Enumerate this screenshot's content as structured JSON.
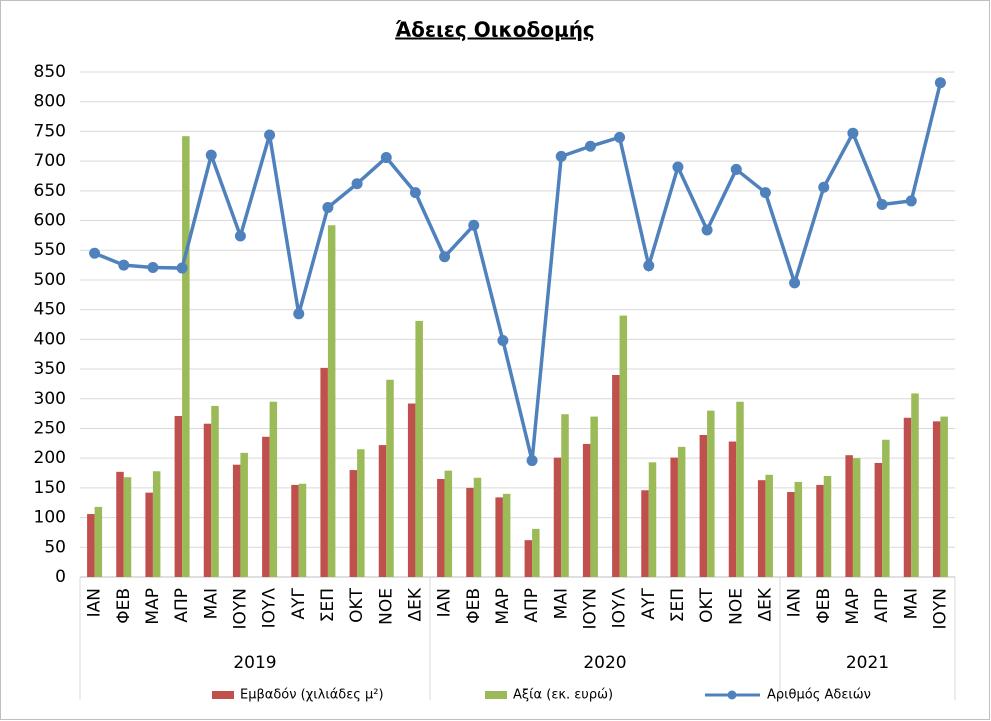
{
  "chart_data": {
    "type": "bar-line",
    "title": "Άδειες Οικοδομής",
    "category_groups": [
      {
        "label": "2019",
        "categories": [
          "ΙΑΝ",
          "ΦΕΒ",
          "ΜΑΡ",
          "ΑΠΡ",
          "ΜΑΙ",
          "ΙΟΥΝ",
          "ΙΟΥΛ",
          "ΑΥΓ",
          "ΣΕΠ",
          "ΟΚΤ",
          "ΝΟΕ",
          "ΔΕΚ"
        ]
      },
      {
        "label": "2020",
        "categories": [
          "ΙΑΝ",
          "ΦΕΒ",
          "ΜΑΡ",
          "ΑΠΡ",
          "ΜΑΙ",
          "ΙΟΥΝ",
          "ΙΟΥΛ",
          "ΑΥΓ",
          "ΣΕΠ",
          "ΟΚΤ",
          "ΝΟΕ",
          "ΔΕΚ"
        ]
      },
      {
        "label": "2021",
        "categories": [
          "ΙΑΝ",
          "ΦΕΒ",
          "ΜΑΡ",
          "ΑΠΡ",
          "ΜΑΙ",
          "ΙΟΥΝ"
        ]
      }
    ],
    "series": [
      {
        "name": "Εμβαδόν (χιλιάδες  μ²)",
        "type": "bar",
        "color": "#c0504d",
        "values": [
          106,
          177,
          142,
          271,
          258,
          189,
          236,
          155,
          352,
          180,
          222,
          292,
          165,
          150,
          134,
          62,
          201,
          224,
          340,
          146,
          201,
          239,
          228,
          163,
          143,
          155,
          205,
          192,
          268,
          262
        ]
      },
      {
        "name": "Αξία (εκ. ευρώ)",
        "type": "bar",
        "color": "#9bbb59",
        "values": [
          118,
          168,
          178,
          742,
          288,
          209,
          295,
          157,
          592,
          215,
          332,
          431,
          179,
          167,
          140,
          81,
          274,
          270,
          440,
          193,
          219,
          280,
          295,
          172,
          160,
          170,
          200,
          231,
          309,
          270
        ]
      },
      {
        "name": "Αριθμός Αδειών",
        "type": "line",
        "color": "#4f81bd",
        "values": [
          545,
          525,
          521,
          520,
          710,
          574,
          744,
          443,
          622,
          662,
          706,
          647,
          539,
          592,
          398,
          196,
          708,
          725,
          740,
          524,
          690,
          584,
          686,
          647,
          495,
          656,
          747,
          627,
          633,
          832
        ]
      }
    ],
    "ylim": [
      0,
      850
    ],
    "yticks": [
      0,
      50,
      100,
      150,
      200,
      250,
      300,
      350,
      400,
      450,
      500,
      550,
      600,
      650,
      700,
      750,
      800,
      850
    ],
    "grid": true,
    "legend": "bottom"
  }
}
